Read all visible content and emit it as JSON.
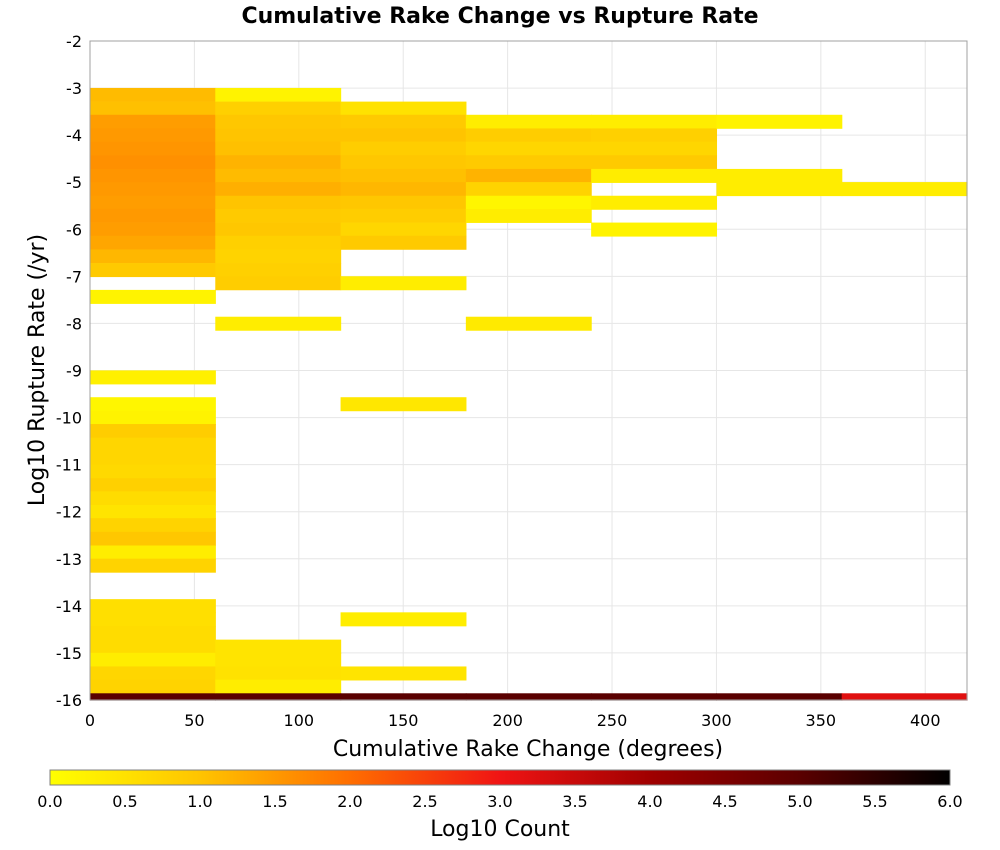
{
  "chart_data": {
    "type": "heatmap",
    "title": "Cumulative Rake Change vs Rupture Rate",
    "xlabel": "Cumulative Rake Change (degrees)",
    "ylabel": "Log10 Rupture Rate (/yr)",
    "xlim": [
      0,
      420
    ],
    "ylim": [
      -16,
      -2
    ],
    "xticks": [
      "0",
      "50",
      "100",
      "150",
      "200",
      "250",
      "300",
      "350",
      "400"
    ],
    "yticks": [
      "-2",
      "-3",
      "-4",
      "-5",
      "-6",
      "-7",
      "-8",
      "-9",
      "-10",
      "-11",
      "-12",
      "-13",
      "-14",
      "-15",
      "-16"
    ],
    "grid": true,
    "x_bin_width": 60,
    "y_bin_height": 0.285,
    "colorbar": {
      "label": "Log10 Count",
      "range": [
        0,
        6
      ],
      "ticks": [
        "0.0",
        "0.5",
        "1.0",
        "1.5",
        "2.0",
        "2.5",
        "3.0",
        "3.5",
        "4.0",
        "4.5",
        "5.0",
        "5.5",
        "6.0"
      ],
      "stops": [
        {
          "v": 0.0,
          "color": "#ffff00"
        },
        {
          "v": 1.0,
          "color": "#ffc400"
        },
        {
          "v": 2.0,
          "color": "#ff6e00"
        },
        {
          "v": 3.0,
          "color": "#f01414"
        },
        {
          "v": 4.0,
          "color": "#a00000"
        },
        {
          "v": 5.0,
          "color": "#5a0000"
        },
        {
          "v": 6.0,
          "color": "#000000"
        }
      ]
    },
    "columns": [
      {
        "x0": 0,
        "x1": 60,
        "cells": [
          {
            "y": -3.14,
            "v": 1.1
          },
          {
            "y": -3.43,
            "v": 1.05
          },
          {
            "y": -3.71,
            "v": 1.45
          },
          {
            "y": -4.0,
            "v": 1.5
          },
          {
            "y": -4.28,
            "v": 1.55
          },
          {
            "y": -4.57,
            "v": 1.6
          },
          {
            "y": -4.86,
            "v": 1.55
          },
          {
            "y": -5.14,
            "v": 1.5
          },
          {
            "y": -5.43,
            "v": 1.45
          },
          {
            "y": -5.71,
            "v": 1.5
          },
          {
            "y": -6.0,
            "v": 1.45
          },
          {
            "y": -6.28,
            "v": 1.35
          },
          {
            "y": -6.57,
            "v": 1.15
          },
          {
            "y": -6.86,
            "v": 0.9
          },
          {
            "y": -7.43,
            "v": 0.2
          },
          {
            "y": -9.14,
            "v": 0.25
          },
          {
            "y": -9.71,
            "v": 0.15
          },
          {
            "y": -10.0,
            "v": 0.2
          },
          {
            "y": -10.28,
            "v": 0.85
          },
          {
            "y": -10.57,
            "v": 0.7
          },
          {
            "y": -10.86,
            "v": 0.7
          },
          {
            "y": -11.14,
            "v": 0.65
          },
          {
            "y": -11.43,
            "v": 0.8
          },
          {
            "y": -11.71,
            "v": 0.6
          },
          {
            "y": -12.0,
            "v": 0.45
          },
          {
            "y": -12.28,
            "v": 0.75
          },
          {
            "y": -12.57,
            "v": 0.95
          },
          {
            "y": -12.86,
            "v": 0.3
          },
          {
            "y": -13.14,
            "v": 0.75
          },
          {
            "y": -14.0,
            "v": 0.55
          },
          {
            "y": -14.28,
            "v": 0.55
          },
          {
            "y": -14.57,
            "v": 0.6
          },
          {
            "y": -14.86,
            "v": 0.6
          },
          {
            "y": -15.14,
            "v": 0.3
          },
          {
            "y": -15.43,
            "v": 0.7
          },
          {
            "y": -15.71,
            "v": 0.75
          },
          {
            "y": -16.0,
            "v": 5.0
          }
        ]
      },
      {
        "x0": 60,
        "x1": 120,
        "cells": [
          {
            "y": -3.14,
            "v": 0.2
          },
          {
            "y": -3.43,
            "v": 0.8
          },
          {
            "y": -3.71,
            "v": 0.95
          },
          {
            "y": -4.0,
            "v": 1.0
          },
          {
            "y": -4.28,
            "v": 1.05
          },
          {
            "y": -4.57,
            "v": 1.2
          },
          {
            "y": -4.86,
            "v": 1.1
          },
          {
            "y": -5.14,
            "v": 1.25
          },
          {
            "y": -5.43,
            "v": 1.0
          },
          {
            "y": -5.71,
            "v": 0.9
          },
          {
            "y": -6.0,
            "v": 0.95
          },
          {
            "y": -6.28,
            "v": 0.8
          },
          {
            "y": -6.57,
            "v": 0.75
          },
          {
            "y": -6.86,
            "v": 0.8
          },
          {
            "y": -7.14,
            "v": 0.85
          },
          {
            "y": -8.0,
            "v": 0.3
          },
          {
            "y": -14.86,
            "v": 0.45
          },
          {
            "y": -15.14,
            "v": 0.45
          },
          {
            "y": -15.43,
            "v": 0.5
          },
          {
            "y": -15.71,
            "v": 0.3
          },
          {
            "y": -16.0,
            "v": 5.0
          }
        ]
      },
      {
        "x0": 120,
        "x1": 180,
        "cells": [
          {
            "y": -3.43,
            "v": 0.5
          },
          {
            "y": -3.71,
            "v": 0.9
          },
          {
            "y": -4.0,
            "v": 1.0
          },
          {
            "y": -4.28,
            "v": 0.85
          },
          {
            "y": -4.57,
            "v": 0.95
          },
          {
            "y": -4.86,
            "v": 1.05
          },
          {
            "y": -5.14,
            "v": 1.15
          },
          {
            "y": -5.43,
            "v": 0.95
          },
          {
            "y": -5.71,
            "v": 0.85
          },
          {
            "y": -6.0,
            "v": 0.7
          },
          {
            "y": -6.28,
            "v": 0.9
          },
          {
            "y": -7.14,
            "v": 0.3
          },
          {
            "y": -9.71,
            "v": 0.4
          },
          {
            "y": -14.28,
            "v": 0.3
          },
          {
            "y": -15.43,
            "v": 0.45
          },
          {
            "y": -16.0,
            "v": 5.0
          }
        ]
      },
      {
        "x0": 180,
        "x1": 240,
        "cells": [
          {
            "y": -3.71,
            "v": 0.3
          },
          {
            "y": -4.0,
            "v": 0.85
          },
          {
            "y": -4.28,
            "v": 0.7
          },
          {
            "y": -4.57,
            "v": 0.9
          },
          {
            "y": -4.86,
            "v": 1.2
          },
          {
            "y": -5.14,
            "v": 0.75
          },
          {
            "y": -5.43,
            "v": 0.15
          },
          {
            "y": -5.71,
            "v": 0.3
          },
          {
            "y": -8.0,
            "v": 0.35
          },
          {
            "y": -16.0,
            "v": 5.0
          }
        ]
      },
      {
        "x0": 240,
        "x1": 300,
        "cells": [
          {
            "y": -3.71,
            "v": 0.3
          },
          {
            "y": -4.0,
            "v": 0.8
          },
          {
            "y": -4.28,
            "v": 0.7
          },
          {
            "y": -4.57,
            "v": 0.9
          },
          {
            "y": -4.86,
            "v": 0.3
          },
          {
            "y": -5.43,
            "v": 0.3
          },
          {
            "y": -6.0,
            "v": 0.2
          },
          {
            "y": -16.0,
            "v": 5.0
          }
        ]
      },
      {
        "x0": 300,
        "x1": 360,
        "cells": [
          {
            "y": -3.71,
            "v": 0.2
          },
          {
            "y": -4.86,
            "v": 0.3
          },
          {
            "y": -5.14,
            "v": 0.3
          },
          {
            "y": -16.0,
            "v": 5.0
          }
        ]
      },
      {
        "x0": 360,
        "x1": 420,
        "cells": [
          {
            "y": -5.14,
            "v": 0.3
          },
          {
            "y": -16.0,
            "v": 3.2
          }
        ]
      }
    ]
  }
}
